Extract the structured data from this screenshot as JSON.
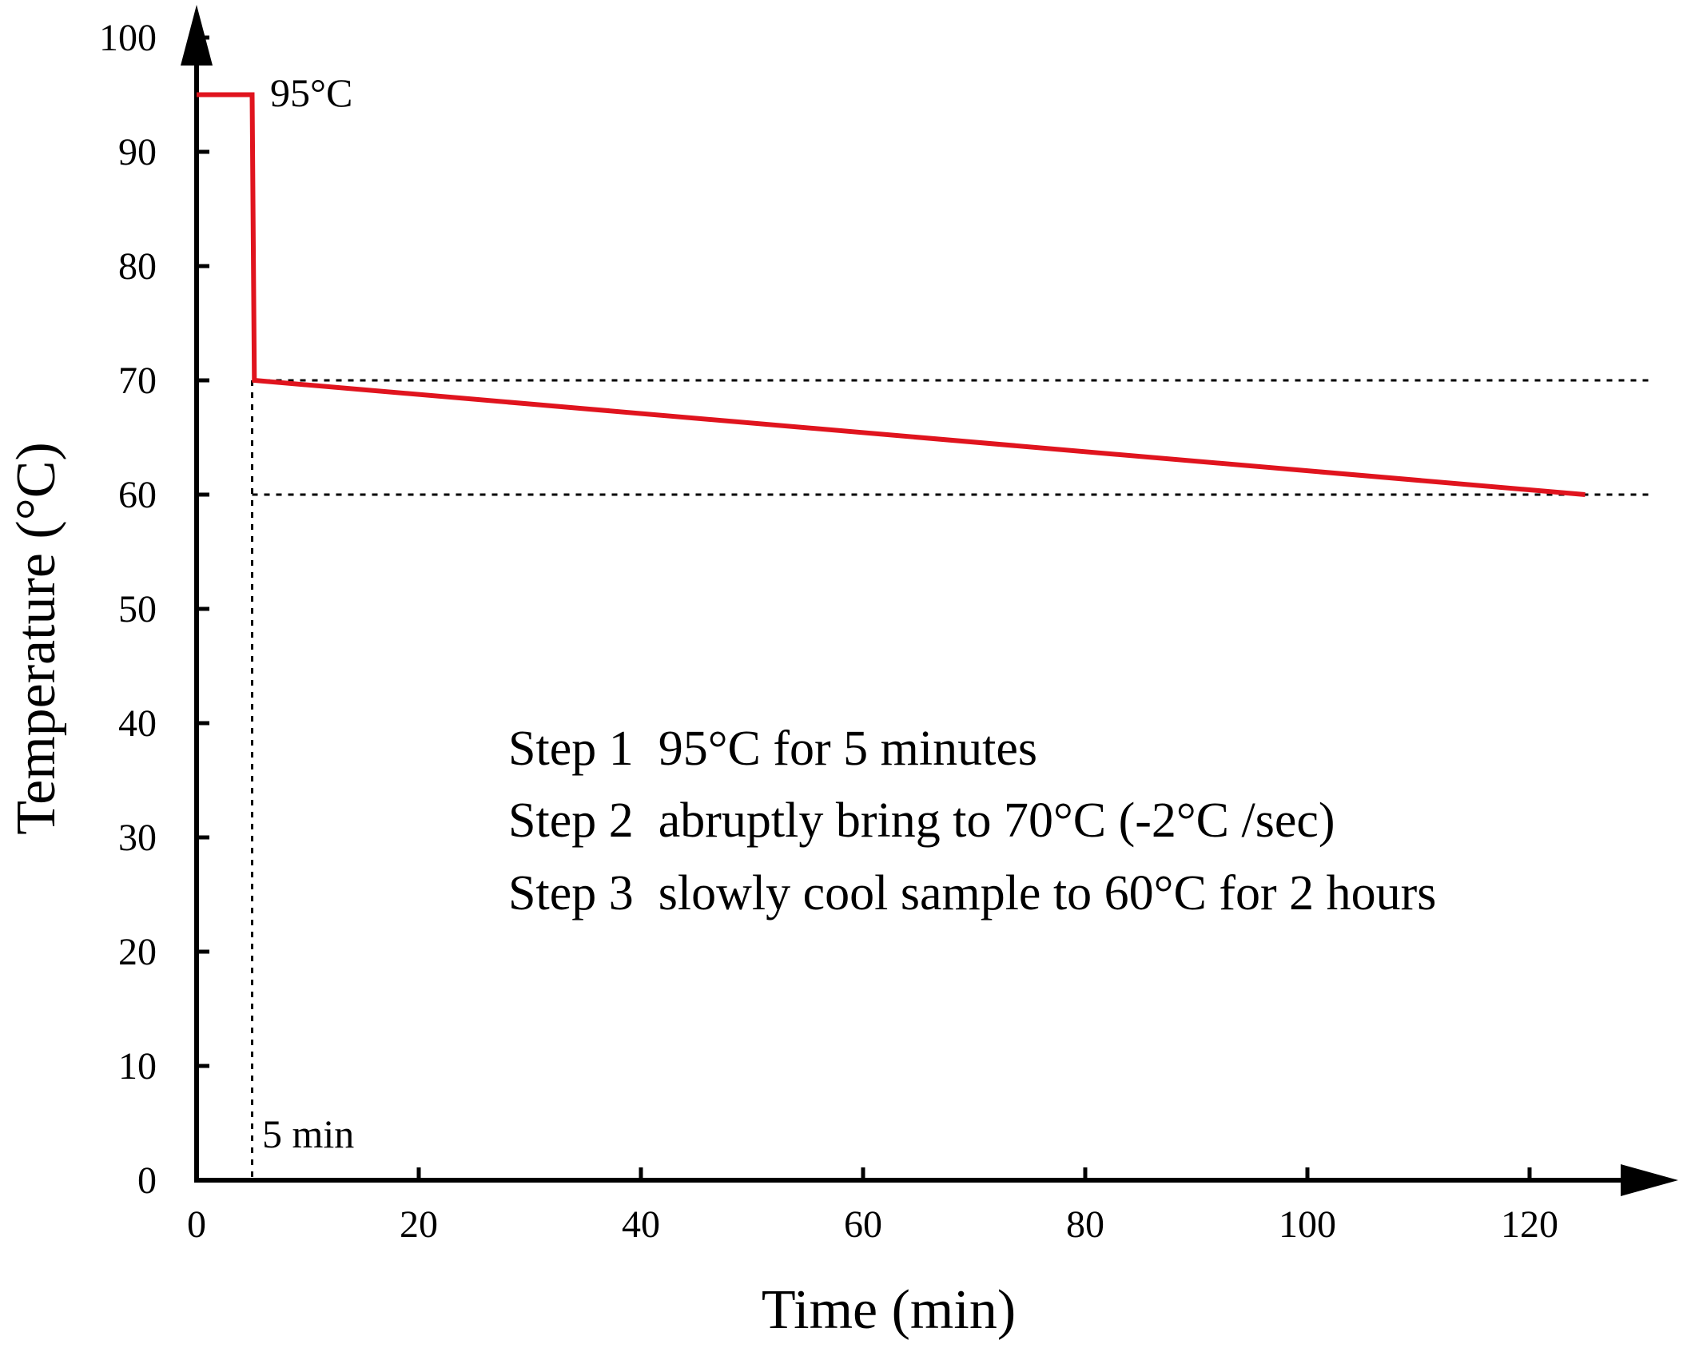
{
  "chart_data": {
    "type": "line",
    "title": "",
    "xlabel": "Time (min)",
    "ylabel": "Temperature (°C)",
    "xlim": [
      0,
      128
    ],
    "ylim": [
      0,
      100
    ],
    "x_ticks": [
      0,
      20,
      40,
      60,
      80,
      100,
      120
    ],
    "y_ticks": [
      0,
      10,
      20,
      30,
      40,
      50,
      60,
      70,
      80,
      90,
      100
    ],
    "grid": false,
    "series": [
      {
        "color": "#e0141e",
        "points": [
          [
            0,
            95
          ],
          [
            5,
            95
          ],
          [
            5.2,
            70
          ],
          [
            125,
            60
          ]
        ]
      }
    ],
    "reference_lines": {
      "horizontal": [
        70,
        60
      ],
      "vertical": [
        5
      ]
    },
    "annotations": {
      "peak_label": "95°C",
      "time_label": "5 min",
      "steps": [
        "Step 1  95°C for 5 minutes",
        "Step 2  abruptly bring to 70°C (-2°C /sec)",
        "Step 3  slowly cool sample to 60°C for 2 hours"
      ]
    }
  }
}
